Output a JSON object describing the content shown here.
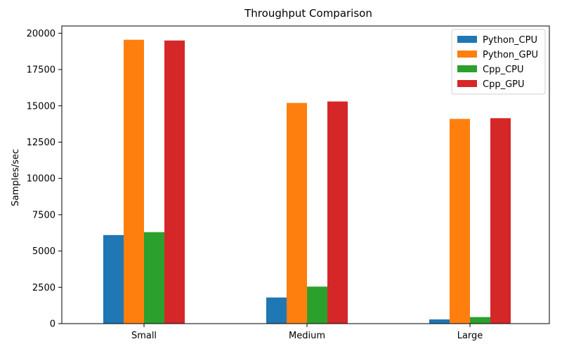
{
  "chart_data": {
    "type": "bar",
    "title": "Throughput Comparison",
    "xlabel": "",
    "ylabel": "Samples/sec",
    "categories": [
      "Small",
      "Medium",
      "Large"
    ],
    "ylim": [
      0,
      20500
    ],
    "yticks": [
      0,
      2500,
      5000,
      7500,
      10000,
      12500,
      15000,
      17500,
      20000
    ],
    "grid": false,
    "legend_position": "top-right",
    "series": [
      {
        "name": "Python_CPU",
        "color": "#1f77b4",
        "values": [
          6100,
          1800,
          290
        ]
      },
      {
        "name": "Python_GPU",
        "color": "#ff7f0e",
        "values": [
          19550,
          15200,
          14100
        ]
      },
      {
        "name": "Cpp_CPU",
        "color": "#2ca02c",
        "values": [
          6300,
          2550,
          450
        ]
      },
      {
        "name": "Cpp_GPU",
        "color": "#d62728",
        "values": [
          19500,
          15300,
          14150
        ]
      }
    ]
  }
}
